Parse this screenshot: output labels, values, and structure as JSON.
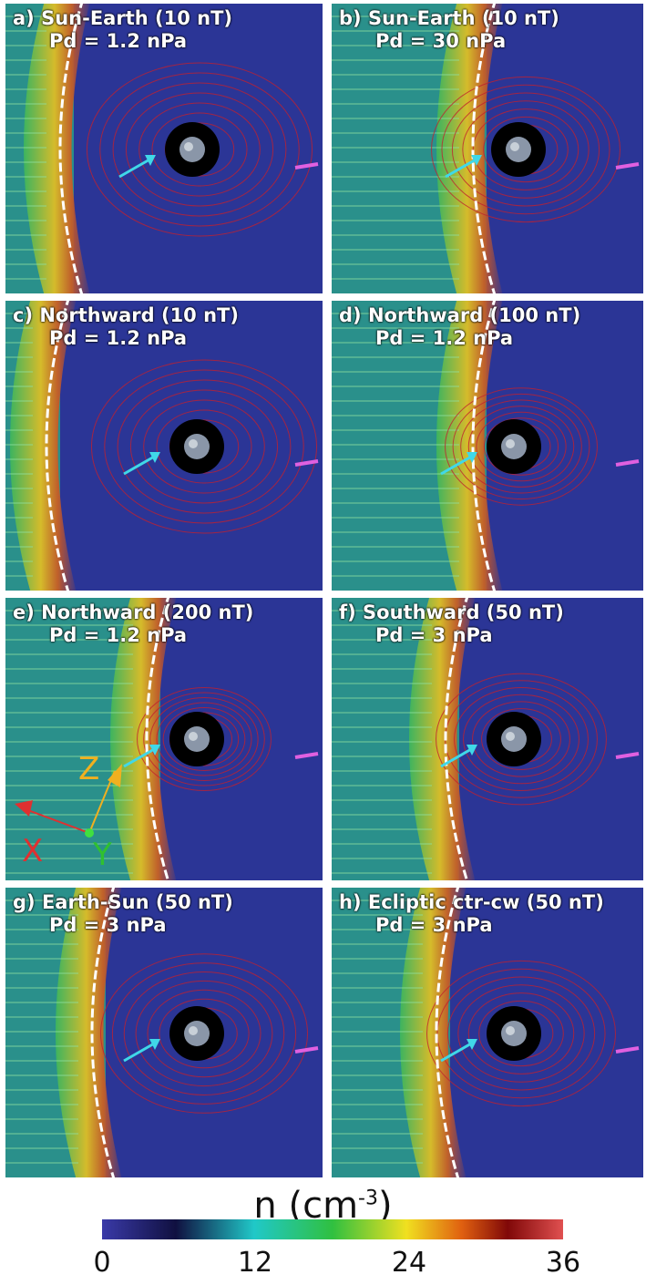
{
  "panels": [
    {
      "line1": "a) Sun-Earth (10 nT)",
      "line2": "Pd = 1.2 nPa"
    },
    {
      "line1": "b) Sun-Earth (10 nT)",
      "line2": "Pd = 30 nPa"
    },
    {
      "line1": "c) Northward (10 nT)",
      "line2": "Pd = 1.2 nPa"
    },
    {
      "line1": "d) Northward (100 nT)",
      "line2": "Pd = 1.2 nPa"
    },
    {
      "line1": "e) Northward (200 nT)",
      "line2": "Pd = 1.2 nPa"
    },
    {
      "line1": "f) Southward (50 nT)",
      "line2": "Pd = 3 nPa"
    },
    {
      "line1": "g) Earth-Sun (50 nT)",
      "line2": "Pd = 3 nPa"
    },
    {
      "line1": "h) Ecliptic ctr-cw (50 nT)",
      "line2": "Pd = 3 nPa"
    }
  ],
  "axes": {
    "z": "Z",
    "x": "X",
    "y": "Y"
  },
  "colorbar": {
    "title": "n (cm",
    "exponent": "-3",
    "title_close": ")",
    "ticks": [
      "0",
      "12",
      "24",
      "36"
    ],
    "colors": [
      "#3a3aa8",
      "#101040",
      "#20c8c8",
      "#30c040",
      "#f0e020",
      "#e06010",
      "#800808",
      "#e05050"
    ]
  }
}
